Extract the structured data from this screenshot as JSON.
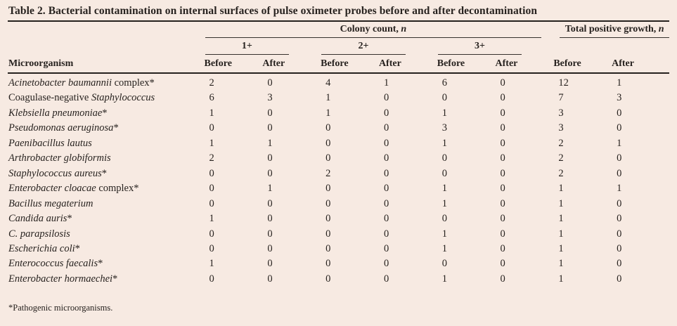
{
  "title": "Table 2. Bacterial contamination on internal surfaces of pulse oximeter probes before and after decontamination",
  "header": {
    "microorganism": "Microorganism",
    "colony_count": {
      "text": "Colony count, ",
      "var": "n"
    },
    "total_positive_growth": {
      "text": "Total positive growth, ",
      "var": "n"
    },
    "plus_groups": [
      "1+",
      "2+",
      "3+"
    ],
    "before": "Before",
    "after": "After"
  },
  "rows": [
    {
      "name": [
        {
          "text": "Acinetobacter baumannii",
          "italic": true
        },
        {
          "text": " complex*",
          "italic": false
        }
      ],
      "values": [
        2,
        0,
        4,
        1,
        6,
        0,
        12,
        1
      ]
    },
    {
      "name": [
        {
          "text": "Coagulase-negative ",
          "italic": false
        },
        {
          "text": "Staphylococcus",
          "italic": true
        }
      ],
      "values": [
        6,
        3,
        1,
        0,
        0,
        0,
        7,
        3
      ]
    },
    {
      "name": [
        {
          "text": "Klebsiella pneumoniae",
          "italic": true
        },
        {
          "text": "*",
          "italic": false
        }
      ],
      "values": [
        1,
        0,
        1,
        0,
        1,
        0,
        3,
        0
      ]
    },
    {
      "name": [
        {
          "text": "Pseudomonas aeruginosa",
          "italic": true
        },
        {
          "text": "*",
          "italic": false
        }
      ],
      "values": [
        0,
        0,
        0,
        0,
        3,
        0,
        3,
        0
      ]
    },
    {
      "name": [
        {
          "text": "Paenibacillus lautus",
          "italic": true
        }
      ],
      "values": [
        1,
        1,
        0,
        0,
        1,
        0,
        2,
        1
      ]
    },
    {
      "name": [
        {
          "text": "Arthrobacter globiformis",
          "italic": true
        }
      ],
      "values": [
        2,
        0,
        0,
        0,
        0,
        0,
        2,
        0
      ]
    },
    {
      "name": [
        {
          "text": "Staphylococcus aureus",
          "italic": true
        },
        {
          "text": "*",
          "italic": false
        }
      ],
      "values": [
        0,
        0,
        2,
        0,
        0,
        0,
        2,
        0
      ]
    },
    {
      "name": [
        {
          "text": "Enterobacter cloacae",
          "italic": true
        },
        {
          "text": " complex*",
          "italic": false
        }
      ],
      "values": [
        0,
        1,
        0,
        0,
        1,
        0,
        1,
        1
      ]
    },
    {
      "name": [
        {
          "text": "Bacillus megaterium",
          "italic": true
        }
      ],
      "values": [
        0,
        0,
        0,
        0,
        1,
        0,
        1,
        0
      ]
    },
    {
      "name": [
        {
          "text": "Candida auris",
          "italic": true
        },
        {
          "text": "*",
          "italic": false
        }
      ],
      "values": [
        1,
        0,
        0,
        0,
        0,
        0,
        1,
        0
      ]
    },
    {
      "name": [
        {
          "text": "C. parapsilosis",
          "italic": true
        }
      ],
      "values": [
        0,
        0,
        0,
        0,
        1,
        0,
        1,
        0
      ]
    },
    {
      "name": [
        {
          "text": "Escherichia coli",
          "italic": true
        },
        {
          "text": "*",
          "italic": false
        }
      ],
      "values": [
        0,
        0,
        0,
        0,
        1,
        0,
        1,
        0
      ]
    },
    {
      "name": [
        {
          "text": "Enterococcus faecalis",
          "italic": true
        },
        {
          "text": "*",
          "italic": false
        }
      ],
      "values": [
        1,
        0,
        0,
        0,
        0,
        0,
        1,
        0
      ]
    },
    {
      "name": [
        {
          "text": "Enterobacter hormaechei",
          "italic": true
        },
        {
          "text": "*",
          "italic": false
        }
      ],
      "values": [
        0,
        0,
        0,
        0,
        1,
        0,
        1,
        0
      ]
    }
  ],
  "footnote": "*Pathogenic microorganisms.",
  "colors": {
    "background": "#f7eae2",
    "text": "#27221f",
    "rule": "#26211e"
  }
}
